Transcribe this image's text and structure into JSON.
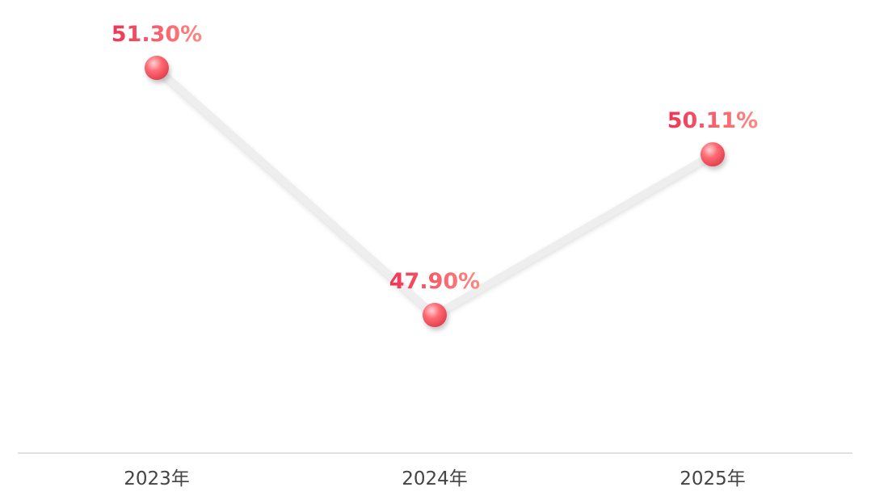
{
  "chart_data": {
    "type": "line",
    "categories": [
      "2023年",
      "2024年",
      "2025年"
    ],
    "series": [
      {
        "values": [
          51.3,
          47.9,
          50.11
        ],
        "labels": [
          "51.30%",
          "47.90%",
          "50.11%"
        ]
      }
    ],
    "title": "",
    "xlabel": "",
    "ylabel": "",
    "grid": false,
    "legend": "none"
  },
  "colors": {
    "marker": "#ff6b74",
    "marker_highlight": "#ffd2d5",
    "marker_shadow": "#e2404e",
    "label_start": "#ef3454",
    "label_end": "#ff8a82",
    "line": "#eeeeee",
    "axis": "#d6d6d6",
    "tick_text": "#444444"
  }
}
